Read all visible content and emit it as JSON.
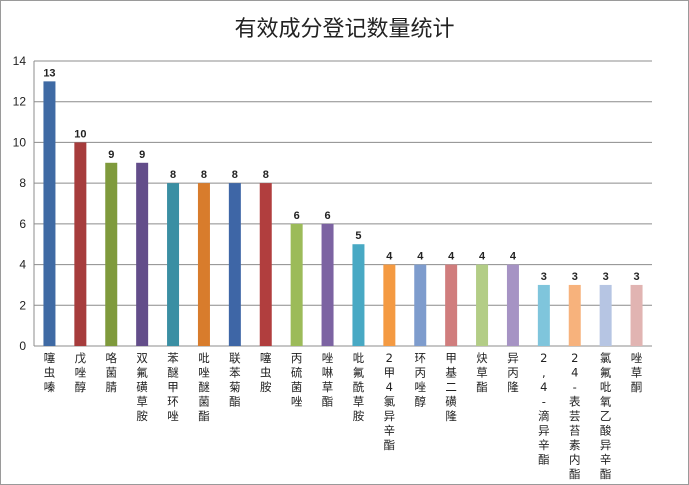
{
  "chart_data": {
    "type": "bar",
    "title": "有效成分登记数量统计",
    "xlabel": "",
    "ylabel": "",
    "ylim": [
      0,
      14
    ],
    "yticks": [
      0,
      2,
      4,
      6,
      8,
      10,
      12,
      14
    ],
    "grid": true,
    "legend": "none",
    "categories": [
      "噻虫嗪",
      "戊唑醇",
      "咯菌腈",
      "双氟磺草胺",
      "苯醚甲环唑",
      "吡唑醚菌酯",
      "联苯菊酯",
      "噻虫胺",
      "丙硫菌唑",
      "唑啉草酯",
      "吡氟酰草胺",
      "2甲4氯异辛酯",
      "环丙唑醇",
      "甲基二磺隆",
      "炔草酯",
      "异丙隆",
      "2,4-滴异辛酯",
      "24-表芸苔素内酯",
      "氯氟吡氧乙酸异辛酯",
      "唑草酮"
    ],
    "values": [
      13,
      10,
      9,
      9,
      8,
      8,
      8,
      8,
      6,
      6,
      5,
      4,
      4,
      4,
      4,
      4,
      3,
      3,
      3,
      3
    ],
    "colors": [
      "#3f6aa4",
      "#a63c3c",
      "#7f9a3c",
      "#634d8a",
      "#3a8fa3",
      "#d87c2c",
      "#3e66a6",
      "#b13e3e",
      "#9cbb59",
      "#7c63a2",
      "#48a9c4",
      "#f49a42",
      "#7e9ccd",
      "#d07d7d",
      "#b3cd86",
      "#a693c4",
      "#7fc5dc",
      "#f7b27c",
      "#b6c5e3",
      "#e1b4b2"
    ]
  }
}
